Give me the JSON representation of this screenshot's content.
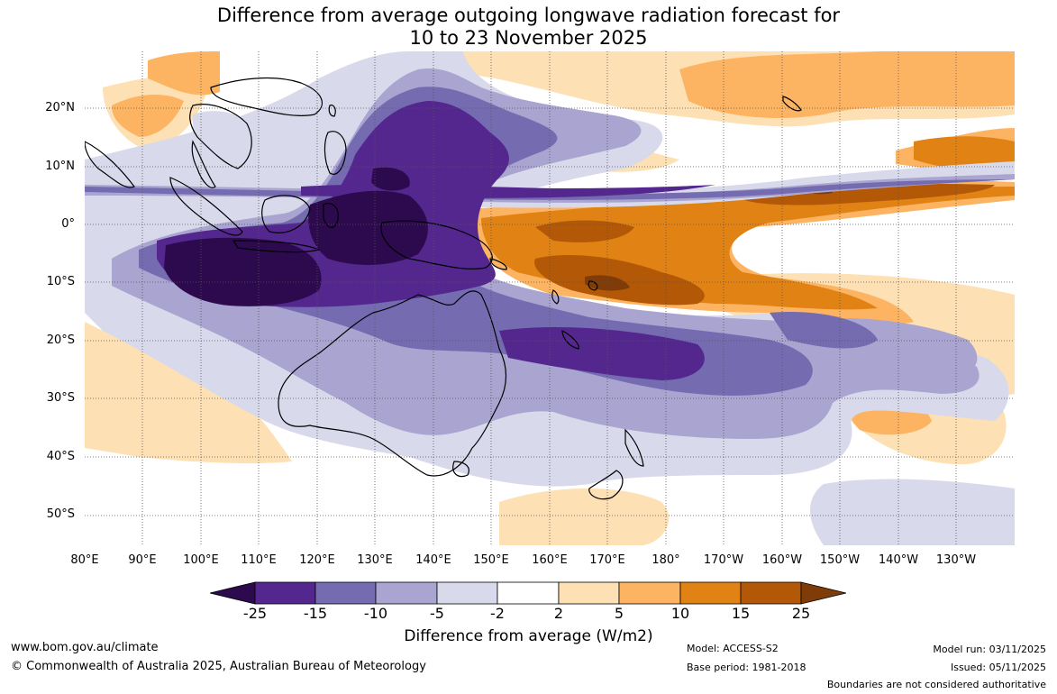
{
  "title": {
    "line1": "Difference from average outgoing longwave radiation forecast for",
    "line2": "10 to 23 November 2025"
  },
  "map": {
    "lat_labels": [
      "20°N",
      "10°N",
      "0°",
      "10°S",
      "20°S",
      "30°S",
      "40°S",
      "50°S"
    ],
    "lon_labels": [
      "80°E",
      "90°E",
      "100°E",
      "110°E",
      "120°E",
      "130°E",
      "140°E",
      "150°E",
      "160°E",
      "170°E",
      "180°",
      "170°W",
      "160°W",
      "150°W",
      "140°W",
      "130°W"
    ]
  },
  "colorbar": {
    "ticks": [
      "-25",
      "-15",
      "-10",
      "-5",
      "-2",
      "2",
      "5",
      "10",
      "15",
      "25"
    ],
    "title": "Difference from average (W/m2)",
    "colors": {
      "lt_m25": "#2d0a4e",
      "m25_m15": "#54278f",
      "m15_m10": "#756bb1",
      "m10_m5": "#a9a4d0",
      "m5_m2": "#d9d9ec",
      "m2_2": "#ffffff",
      "p2_5": "#fde0b3",
      "p5_10": "#fdb462",
      "p10_15": "#e08214",
      "p15_25": "#b35806",
      "gt_25": "#7f3b08"
    }
  },
  "footer": {
    "website": "www.bom.gov.au/climate",
    "copyright": "© Commonwealth of Australia 2025, Australian Bureau of Meteorology",
    "model": "Model: ACCESS-S2",
    "base_period": "Base period: 1981-2018",
    "model_run": "Model run: 03/11/2025",
    "issued": "Issued: 05/11/2025",
    "boundaries": "Boundaries are not considered authoritative"
  }
}
